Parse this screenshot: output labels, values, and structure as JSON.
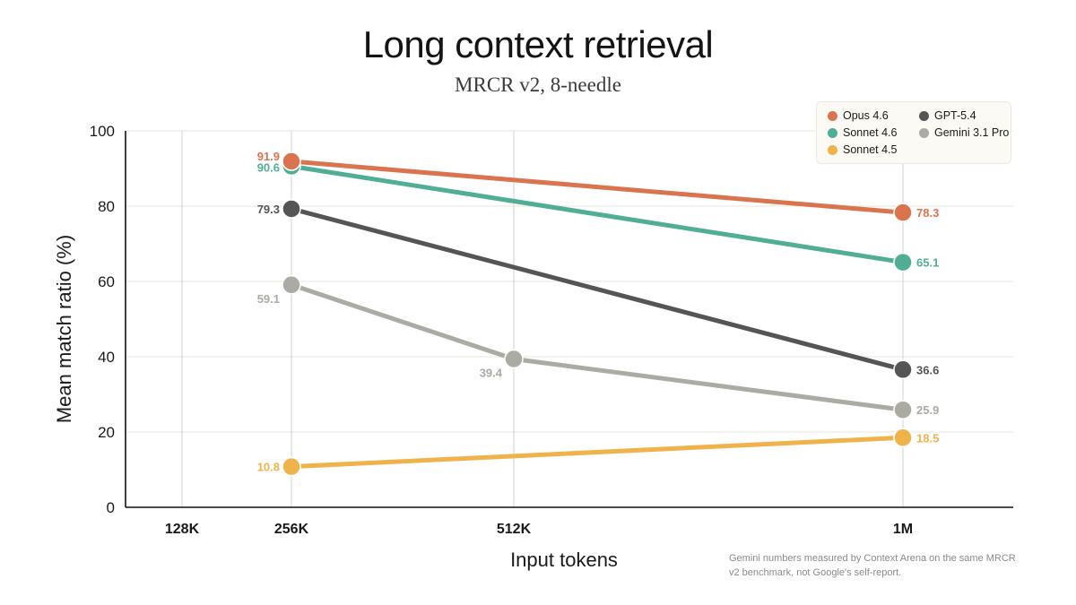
{
  "chart_data": {
    "type": "line",
    "title": "Long context retrieval",
    "subtitle": "MRCR v2, 8-needle",
    "xlabel": "Input tokens",
    "ylabel": "Mean match ratio (%)",
    "ylim": [
      0,
      100
    ],
    "yticks": [
      "0",
      "20",
      "40",
      "60",
      "80",
      "100"
    ],
    "categories": [
      "128K",
      "256K",
      "512K",
      "1M"
    ],
    "legend_position": "top-right",
    "series": [
      {
        "name": "Opus 4.6",
        "color": "#d9744f",
        "points": [
          {
            "x": "256K",
            "y": 91.9,
            "label": "91.9"
          },
          {
            "x": "1M",
            "y": 78.3,
            "label": "78.3"
          }
        ]
      },
      {
        "name": "Sonnet 4.6",
        "color": "#4fae93",
        "points": [
          {
            "x": "256K",
            "y": 90.6,
            "label": "90.6"
          },
          {
            "x": "1M",
            "y": 65.1,
            "label": "65.1"
          }
        ]
      },
      {
        "name": "Sonnet 4.5",
        "color": "#f0b24b",
        "points": [
          {
            "x": "256K",
            "y": 10.8,
            "label": "10.8"
          },
          {
            "x": "1M",
            "y": 18.5,
            "label": "18.5"
          }
        ]
      },
      {
        "name": "GPT-5.4",
        "color": "#555555",
        "points": [
          {
            "x": "256K",
            "y": 79.3,
            "label": "79.3"
          },
          {
            "x": "1M",
            "y": 36.6,
            "label": "36.6"
          }
        ]
      },
      {
        "name": "Gemini 3.1 Pro",
        "color": "#abaaa3",
        "points": [
          {
            "x": "256K",
            "y": 59.1,
            "label": "59.1"
          },
          {
            "x": "512K",
            "y": 39.4,
            "label": "39.4"
          },
          {
            "x": "1M",
            "y": 25.9,
            "label": "25.9"
          }
        ]
      }
    ]
  },
  "footnote": "Gemini numbers measured by Context Arena on the same MRCR v2 benchmark, not Google's self-report."
}
